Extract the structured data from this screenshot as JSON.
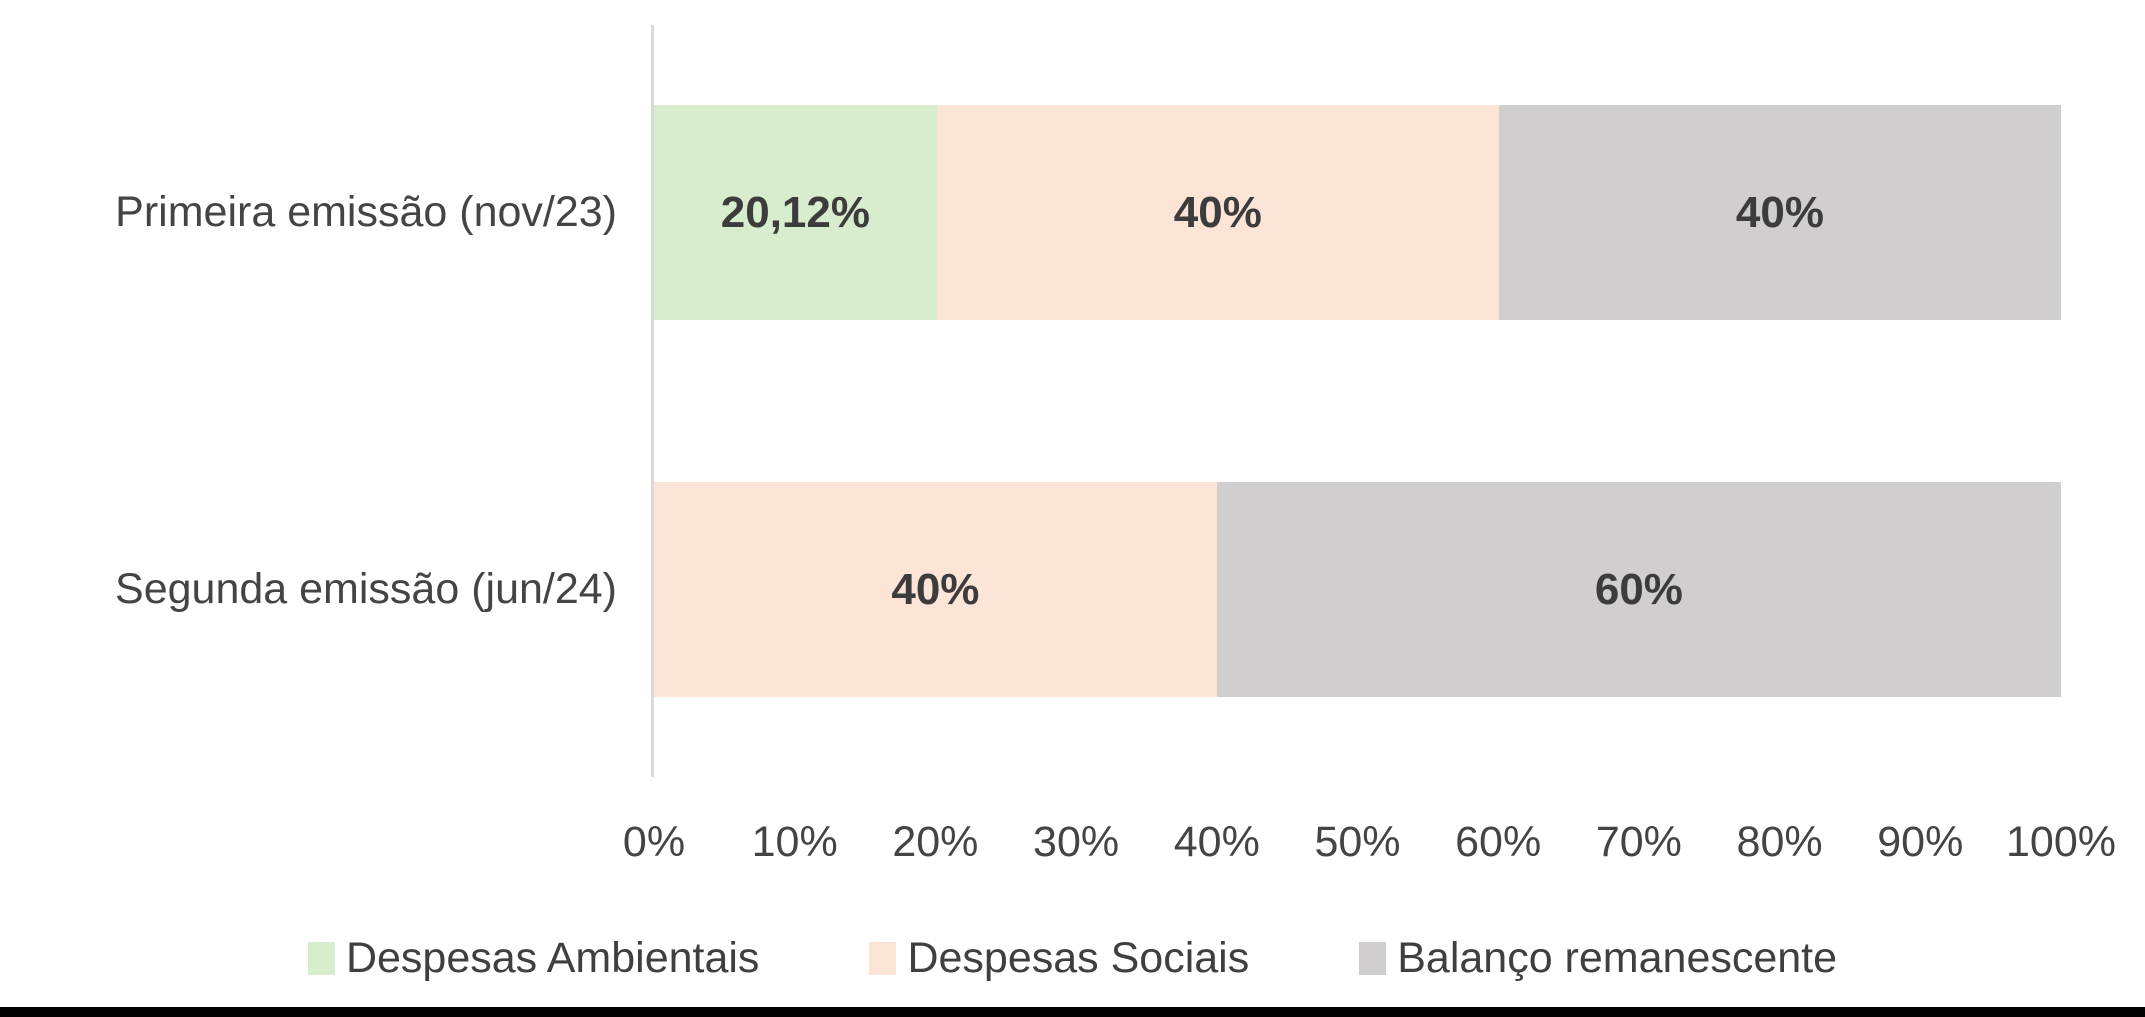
{
  "chart_data": {
    "type": "bar",
    "orientation": "horizontal",
    "stacked": true,
    "title": "",
    "categories": [
      "Primeira emissão (nov/23)",
      "Segunda emissão (jun/24)"
    ],
    "series": [
      {
        "name": "Despesas Ambientais",
        "color": "#d7edce",
        "values": [
          20.12,
          0
        ],
        "labels": [
          "20,12%",
          ""
        ]
      },
      {
        "name": "Despesas Sociais",
        "color": "#fce4d6",
        "values": [
          40,
          40
        ],
        "labels": [
          "40%",
          "40%"
        ]
      },
      {
        "name": "Balanço remanescente",
        "color": "#d0cece",
        "values": [
          40,
          60
        ],
        "labels": [
          "40%",
          "60%"
        ]
      }
    ],
    "x_axis": {
      "min": 0,
      "max": 100,
      "tick_labels": [
        "0%",
        "10%",
        "20%",
        "30%",
        "40%",
        "50%",
        "60%",
        "70%",
        "80%",
        "90%",
        "100%"
      ]
    },
    "legend_position": "bottom",
    "grid": false,
    "colors": {
      "axis_line": "#d9d9d9",
      "data_label_text": "#3c3c3c",
      "axis_text": "#444444",
      "bottom_strip": "#010101"
    }
  }
}
